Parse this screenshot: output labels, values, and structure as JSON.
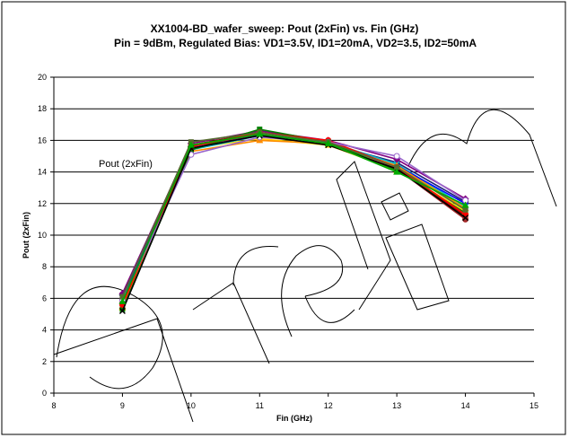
{
  "chart_data": {
    "type": "line",
    "title": "XX1004-BD_wafer_sweep: Pout (2xFin) vs. Fin (GHz)",
    "subtitle": "Pin = 9dBm, Regulated Bias: VD1=3.5V, ID1=20mA, VD2=3.5, ID2=50mA",
    "xlabel": "Fin (GHz)",
    "ylabel": "Pout (2xFin)",
    "xlim": [
      8,
      15
    ],
    "ylim": [
      0,
      20
    ],
    "x_ticks": [
      "8",
      "9",
      "10",
      "11",
      "12",
      "13",
      "14",
      "15"
    ],
    "y_ticks": [
      "0",
      "2",
      "4",
      "6",
      "8",
      "10",
      "12",
      "14",
      "16",
      "18",
      "20"
    ],
    "grid": "horizontal",
    "annotation": "Pout (2xFin)",
    "watermark": "preliminary",
    "x": [
      9,
      10,
      11,
      12,
      13,
      14
    ],
    "series": [
      {
        "color": "#1f1f7a",
        "marker": "diamond",
        "values": [
          6.2,
          15.6,
          16.4,
          15.8,
          14.6,
          12.1
        ]
      },
      {
        "color": "#8b0000",
        "marker": "square",
        "values": [
          5.9,
          15.7,
          16.5,
          15.9,
          14.3,
          11.2
        ]
      },
      {
        "color": "#ffd700",
        "marker": "triangle",
        "values": [
          5.4,
          15.5,
          16.1,
          15.7,
          14.1,
          11.5
        ]
      },
      {
        "color": "#00bfbf",
        "marker": "x",
        "values": [
          5.8,
          15.4,
          16.3,
          15.9,
          14.5,
          11.8
        ]
      },
      {
        "color": "#800080",
        "marker": "diamond",
        "values": [
          6.3,
          15.8,
          16.6,
          16.0,
          14.8,
          12.3
        ]
      },
      {
        "color": "#a52a2a",
        "marker": "circle",
        "values": [
          5.7,
          15.6,
          16.4,
          15.8,
          14.2,
          11.0
        ]
      },
      {
        "color": "#0000ff",
        "marker": "plus",
        "values": [
          6.0,
          15.5,
          16.3,
          15.8,
          14.4,
          12.0
        ]
      },
      {
        "color": "#ff8c00",
        "marker": "triangle",
        "values": [
          5.5,
          15.3,
          16.0,
          15.8,
          14.4,
          11.7
        ]
      },
      {
        "color": "#008000",
        "marker": "square",
        "values": [
          5.3,
          15.4,
          16.7,
          15.9,
          14.1,
          11.4
        ]
      },
      {
        "color": "#ff0000",
        "marker": "circle",
        "values": [
          5.6,
          15.6,
          16.5,
          16.0,
          14.3,
          11.3
        ]
      },
      {
        "color": "#9966cc",
        "marker": "circle",
        "values": [
          5.9,
          15.1,
          16.2,
          15.9,
          15.0,
          12.2
        ]
      },
      {
        "color": "#000000",
        "marker": "x",
        "values": [
          5.2,
          15.5,
          16.3,
          15.7,
          14.2,
          11.1
        ]
      },
      {
        "color": "#556b2f",
        "marker": "square",
        "values": [
          6.1,
          15.9,
          16.5,
          15.9,
          14.3,
          11.6
        ]
      },
      {
        "color": "#00aa00",
        "marker": "triangle",
        "values": [
          5.8,
          15.7,
          16.4,
          15.8,
          14.0,
          11.9
        ]
      }
    ]
  }
}
